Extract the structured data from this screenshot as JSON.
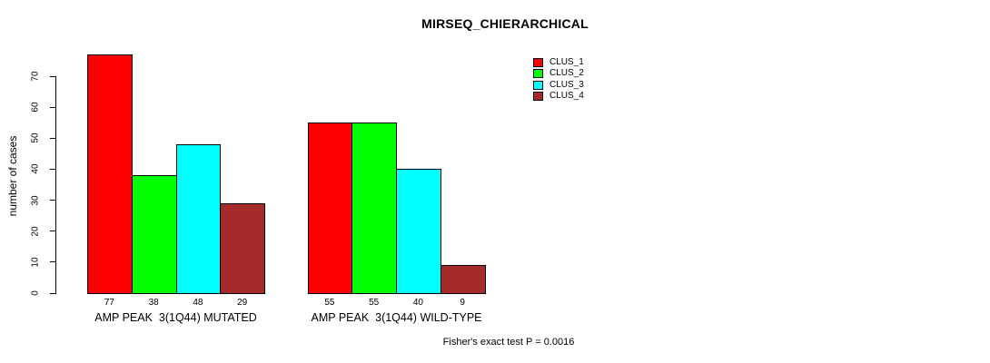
{
  "title": "MIRSEQ_CHIERARCHICAL",
  "y_axis_label": "number of cases",
  "footer_note": "Fisher's exact test P = 0.0016",
  "legend": {
    "items": [
      {
        "label": "CLUS_1",
        "color": "#ff0000"
      },
      {
        "label": "CLUS_2",
        "color": "#00ff00"
      },
      {
        "label": "CLUS_3",
        "color": "#00ffff"
      },
      {
        "label": "CLUS_4",
        "color": "#a52a2a"
      }
    ]
  },
  "chart_data": {
    "type": "bar",
    "title": "MIRSEQ_CHIERARCHICAL",
    "xlabel": "",
    "ylabel": "number of cases",
    "ylim": [
      0,
      77
    ],
    "yticks": [
      0,
      10,
      20,
      30,
      40,
      50,
      60,
      70
    ],
    "grid": false,
    "legend_position": "top-right",
    "categories": [
      "AMP PEAK  3(1Q44) MUTATED",
      "AMP PEAK  3(1Q44) WILD-TYPE"
    ],
    "series": [
      {
        "name": "CLUS_1",
        "color": "#ff0000",
        "values": [
          77,
          55
        ]
      },
      {
        "name": "CLUS_2",
        "color": "#00ff00",
        "values": [
          38,
          55
        ]
      },
      {
        "name": "CLUS_3",
        "color": "#00ffff",
        "values": [
          48,
          40
        ]
      },
      {
        "name": "CLUS_4",
        "color": "#a52a2a",
        "values": [
          29,
          9
        ]
      }
    ],
    "bar_value_labels": [
      [
        77,
        38,
        48,
        29
      ],
      [
        55,
        55,
        40,
        9
      ]
    ],
    "annotation": "Fisher's exact test P = 0.0016"
  }
}
